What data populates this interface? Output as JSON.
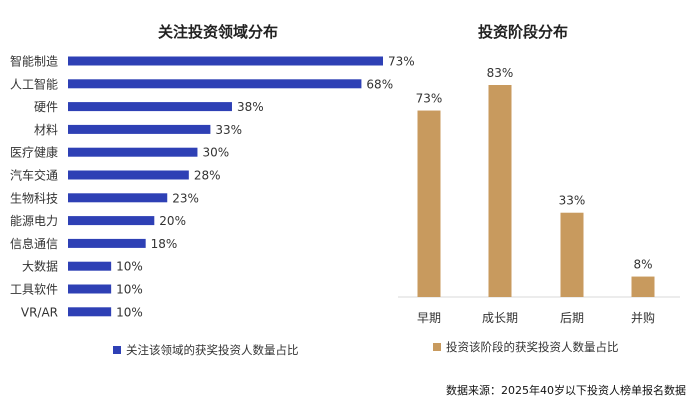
{
  "chart_data": [
    {
      "type": "bar",
      "orientation": "horizontal",
      "title": "关注投资领域分布",
      "categories": [
        "智能制造",
        "人工智能",
        "硬件",
        "材料",
        "医疗健康",
        "汽车交通",
        "生物科技",
        "能源电力",
        "信息通信",
        "大数据",
        "工具软件",
        "VR/AR"
      ],
      "values": [
        73,
        68,
        38,
        33,
        30,
        28,
        23,
        20,
        18,
        10,
        10,
        10
      ],
      "value_labels": [
        "73%",
        "68%",
        "38%",
        "33%",
        "30%",
        "28%",
        "23%",
        "20%",
        "18%",
        "10%",
        "10%",
        "10%"
      ],
      "unit": "%",
      "xlim": [
        0,
        80
      ],
      "grid": false,
      "legend": {
        "label": "关注该领域的获奖投资人数量占比",
        "placement": "bottom"
      },
      "color": "#2E40B5"
    },
    {
      "type": "bar",
      "orientation": "vertical",
      "title": "投资阶段分布",
      "categories": [
        "早期",
        "成长期",
        "后期",
        "并购"
      ],
      "values": [
        73,
        83,
        33,
        8
      ],
      "value_labels": [
        "73%",
        "83%",
        "33%",
        "8%"
      ],
      "unit": "%",
      "ylim": [
        0,
        90
      ],
      "grid": false,
      "legend": {
        "label": "投资该阶段的获奖投资人数量占比",
        "placement": "bottom"
      },
      "color": "#C89A5E"
    }
  ],
  "source": "数据来源：2025年40岁以下投资人榜单报名数据"
}
